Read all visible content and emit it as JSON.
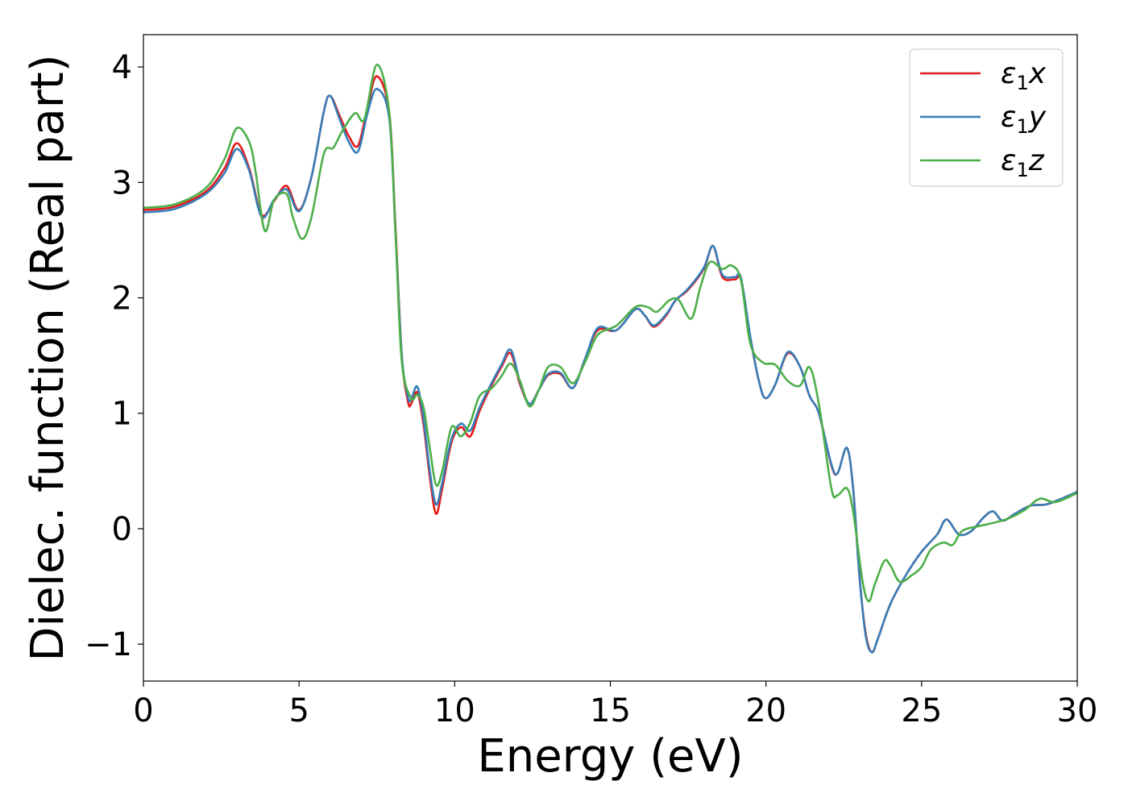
{
  "chart_data": {
    "type": "line",
    "title": "",
    "xlabel": "Energy (eV)",
    "ylabel": "Dielec. function (Real part)",
    "xlim": [
      0,
      30
    ],
    "ylim": [
      -1.32,
      4.28
    ],
    "xticks": [
      0,
      5,
      10,
      15,
      20,
      25,
      30
    ],
    "xtick_labels": [
      "0",
      "5",
      "10",
      "15",
      "20",
      "25",
      "30"
    ],
    "yticks": [
      -1,
      0,
      1,
      2,
      3,
      4
    ],
    "ytick_labels": [
      "−1",
      "0",
      "1",
      "2",
      "3",
      "4"
    ],
    "grid": false,
    "legend_position": "top-right",
    "series": [
      {
        "name": "ε1x",
        "legend_base": "ε",
        "legend_sub": "1",
        "legend_var": "x",
        "color": "#e41a1c",
        "points": [
          [
            0,
            2.76
          ],
          [
            1,
            2.79
          ],
          [
            2,
            2.92
          ],
          [
            2.6,
            3.12
          ],
          [
            3.0,
            3.34
          ],
          [
            3.4,
            3.12
          ],
          [
            3.8,
            2.72
          ],
          [
            4.2,
            2.84
          ],
          [
            4.6,
            2.97
          ],
          [
            5.0,
            2.76
          ],
          [
            5.4,
            3.05
          ],
          [
            5.8,
            3.62
          ],
          [
            6.0,
            3.75
          ],
          [
            6.3,
            3.58
          ],
          [
            6.6,
            3.4
          ],
          [
            6.9,
            3.32
          ],
          [
            7.2,
            3.65
          ],
          [
            7.5,
            3.92
          ],
          [
            7.9,
            3.6
          ],
          [
            8.1,
            2.6
          ],
          [
            8.3,
            1.5
          ],
          [
            8.5,
            1.1
          ],
          [
            8.6,
            1.08
          ],
          [
            8.8,
            1.18
          ],
          [
            9.0,
            0.9
          ],
          [
            9.2,
            0.45
          ],
          [
            9.4,
            0.13
          ],
          [
            9.6,
            0.35
          ],
          [
            9.9,
            0.75
          ],
          [
            10.2,
            0.88
          ],
          [
            10.5,
            0.8
          ],
          [
            10.8,
            1.02
          ],
          [
            11.2,
            1.25
          ],
          [
            11.5,
            1.4
          ],
          [
            11.8,
            1.52
          ],
          [
            12.1,
            1.25
          ],
          [
            12.4,
            1.08
          ],
          [
            12.7,
            1.2
          ],
          [
            13.0,
            1.33
          ],
          [
            13.4,
            1.34
          ],
          [
            13.8,
            1.22
          ],
          [
            14.2,
            1.48
          ],
          [
            14.6,
            1.72
          ],
          [
            15.2,
            1.72
          ],
          [
            15.8,
            1.9
          ],
          [
            16.1,
            1.85
          ],
          [
            16.4,
            1.75
          ],
          [
            16.8,
            1.85
          ],
          [
            17.1,
            1.98
          ],
          [
            17.5,
            2.07
          ],
          [
            18.0,
            2.25
          ],
          [
            18.3,
            2.45
          ],
          [
            18.6,
            2.18
          ],
          [
            19.0,
            2.16
          ],
          [
            19.2,
            2.15
          ],
          [
            19.5,
            1.65
          ],
          [
            19.8,
            1.25
          ],
          [
            20.0,
            1.13
          ],
          [
            20.3,
            1.25
          ],
          [
            20.7,
            1.52
          ],
          [
            21.1,
            1.4
          ],
          [
            21.4,
            1.15
          ],
          [
            21.7,
            1.0
          ],
          [
            22.1,
            0.55
          ],
          [
            22.3,
            0.48
          ],
          [
            22.6,
            0.7
          ],
          [
            22.8,
            0.35
          ],
          [
            23.0,
            -0.4
          ],
          [
            23.2,
            -0.9
          ],
          [
            23.4,
            -1.07
          ],
          [
            23.6,
            -0.95
          ],
          [
            24.0,
            -0.65
          ],
          [
            24.5,
            -0.4
          ],
          [
            25.0,
            -0.2
          ],
          [
            25.5,
            -0.05
          ],
          [
            25.8,
            0.08
          ],
          [
            26.2,
            -0.05
          ],
          [
            26.6,
            -0.02
          ],
          [
            27.0,
            0.1
          ],
          [
            27.3,
            0.15
          ],
          [
            27.6,
            0.07
          ],
          [
            28.0,
            0.13
          ],
          [
            28.5,
            0.2
          ],
          [
            29.0,
            0.21
          ],
          [
            29.5,
            0.26
          ],
          [
            30,
            0.32
          ]
        ]
      },
      {
        "name": "ε1y",
        "legend_base": "ε",
        "legend_sub": "1",
        "legend_var": "y",
        "color": "#377eb8",
        "points": [
          [
            0,
            2.74
          ],
          [
            1,
            2.77
          ],
          [
            2,
            2.9
          ],
          [
            2.6,
            3.08
          ],
          [
            3.0,
            3.29
          ],
          [
            3.4,
            3.1
          ],
          [
            3.8,
            2.7
          ],
          [
            4.2,
            2.85
          ],
          [
            4.6,
            2.94
          ],
          [
            5.0,
            2.75
          ],
          [
            5.4,
            3.05
          ],
          [
            5.8,
            3.62
          ],
          [
            6.0,
            3.75
          ],
          [
            6.3,
            3.55
          ],
          [
            6.6,
            3.35
          ],
          [
            6.9,
            3.27
          ],
          [
            7.2,
            3.6
          ],
          [
            7.5,
            3.81
          ],
          [
            7.9,
            3.55
          ],
          [
            8.1,
            2.55
          ],
          [
            8.3,
            1.5
          ],
          [
            8.5,
            1.14
          ],
          [
            8.6,
            1.12
          ],
          [
            8.8,
            1.23
          ],
          [
            9.0,
            0.95
          ],
          [
            9.2,
            0.5
          ],
          [
            9.4,
            0.21
          ],
          [
            9.6,
            0.4
          ],
          [
            9.9,
            0.78
          ],
          [
            10.2,
            0.91
          ],
          [
            10.5,
            0.85
          ],
          [
            10.8,
            1.05
          ],
          [
            11.2,
            1.27
          ],
          [
            11.5,
            1.42
          ],
          [
            11.8,
            1.55
          ],
          [
            12.1,
            1.27
          ],
          [
            12.4,
            1.08
          ],
          [
            12.7,
            1.2
          ],
          [
            13.0,
            1.34
          ],
          [
            13.4,
            1.35
          ],
          [
            13.8,
            1.22
          ],
          [
            14.2,
            1.48
          ],
          [
            14.6,
            1.74
          ],
          [
            15.2,
            1.72
          ],
          [
            15.8,
            1.9
          ],
          [
            16.1,
            1.85
          ],
          [
            16.4,
            1.76
          ],
          [
            16.8,
            1.86
          ],
          [
            17.1,
            1.98
          ],
          [
            17.5,
            2.08
          ],
          [
            18.0,
            2.26
          ],
          [
            18.3,
            2.45
          ],
          [
            18.6,
            2.2
          ],
          [
            19.0,
            2.18
          ],
          [
            19.2,
            2.17
          ],
          [
            19.5,
            1.66
          ],
          [
            19.8,
            1.25
          ],
          [
            20.0,
            1.13
          ],
          [
            20.3,
            1.25
          ],
          [
            20.7,
            1.53
          ],
          [
            21.1,
            1.4
          ],
          [
            21.4,
            1.15
          ],
          [
            21.7,
            1.0
          ],
          [
            22.1,
            0.56
          ],
          [
            22.3,
            0.48
          ],
          [
            22.6,
            0.7
          ],
          [
            22.8,
            0.35
          ],
          [
            23.0,
            -0.4
          ],
          [
            23.2,
            -0.92
          ],
          [
            23.4,
            -1.07
          ],
          [
            23.6,
            -0.95
          ],
          [
            24.0,
            -0.65
          ],
          [
            24.5,
            -0.4
          ],
          [
            25.0,
            -0.2
          ],
          [
            25.5,
            -0.05
          ],
          [
            25.8,
            0.08
          ],
          [
            26.2,
            -0.05
          ],
          [
            26.6,
            -0.02
          ],
          [
            27.0,
            0.1
          ],
          [
            27.3,
            0.15
          ],
          [
            27.6,
            0.07
          ],
          [
            28.0,
            0.13
          ],
          [
            28.5,
            0.2
          ],
          [
            29.0,
            0.21
          ],
          [
            29.5,
            0.26
          ],
          [
            30,
            0.32
          ]
        ]
      },
      {
        "name": "ε1z",
        "legend_base": "ε",
        "legend_sub": "1",
        "legend_var": "z",
        "color": "#4daf4a",
        "points": [
          [
            0,
            2.78
          ],
          [
            1,
            2.81
          ],
          [
            2,
            2.95
          ],
          [
            2.6,
            3.2
          ],
          [
            3.0,
            3.47
          ],
          [
            3.4,
            3.35
          ],
          [
            3.6,
            3.1
          ],
          [
            3.9,
            2.58
          ],
          [
            4.2,
            2.85
          ],
          [
            4.6,
            2.9
          ],
          [
            4.8,
            2.7
          ],
          [
            5.1,
            2.51
          ],
          [
            5.4,
            2.7
          ],
          [
            5.8,
            3.25
          ],
          [
            6.1,
            3.3
          ],
          [
            6.4,
            3.45
          ],
          [
            6.8,
            3.6
          ],
          [
            7.1,
            3.55
          ],
          [
            7.5,
            4.02
          ],
          [
            7.9,
            3.6
          ],
          [
            8.1,
            2.55
          ],
          [
            8.3,
            1.45
          ],
          [
            8.6,
            1.13
          ],
          [
            8.8,
            1.16
          ],
          [
            9.0,
            1.05
          ],
          [
            9.2,
            0.7
          ],
          [
            9.4,
            0.38
          ],
          [
            9.6,
            0.5
          ],
          [
            9.9,
            0.88
          ],
          [
            10.2,
            0.8
          ],
          [
            10.5,
            0.92
          ],
          [
            10.8,
            1.15
          ],
          [
            11.2,
            1.22
          ],
          [
            11.5,
            1.32
          ],
          [
            11.8,
            1.43
          ],
          [
            12.1,
            1.28
          ],
          [
            12.4,
            1.06
          ],
          [
            12.7,
            1.2
          ],
          [
            13.0,
            1.4
          ],
          [
            13.4,
            1.4
          ],
          [
            13.8,
            1.26
          ],
          [
            14.2,
            1.45
          ],
          [
            14.6,
            1.68
          ],
          [
            15.2,
            1.76
          ],
          [
            15.8,
            1.92
          ],
          [
            16.2,
            1.92
          ],
          [
            16.5,
            1.88
          ],
          [
            16.9,
            1.98
          ],
          [
            17.2,
            1.98
          ],
          [
            17.6,
            1.82
          ],
          [
            17.9,
            2.1
          ],
          [
            18.2,
            2.31
          ],
          [
            18.6,
            2.25
          ],
          [
            18.9,
            2.28
          ],
          [
            19.2,
            2.15
          ],
          [
            19.5,
            1.6
          ],
          [
            19.9,
            1.44
          ],
          [
            20.3,
            1.42
          ],
          [
            20.7,
            1.28
          ],
          [
            21.1,
            1.24
          ],
          [
            21.4,
            1.4
          ],
          [
            21.7,
            1.08
          ],
          [
            22.1,
            0.35
          ],
          [
            22.3,
            0.29
          ],
          [
            22.6,
            0.35
          ],
          [
            22.8,
            0.15
          ],
          [
            23.1,
            -0.45
          ],
          [
            23.3,
            -0.63
          ],
          [
            23.5,
            -0.48
          ],
          [
            23.8,
            -0.28
          ],
          [
            24.0,
            -0.32
          ],
          [
            24.3,
            -0.46
          ],
          [
            24.7,
            -0.4
          ],
          [
            25.0,
            -0.33
          ],
          [
            25.3,
            -0.18
          ],
          [
            25.7,
            -0.12
          ],
          [
            26.0,
            -0.14
          ],
          [
            26.3,
            -0.02
          ],
          [
            26.8,
            0.02
          ],
          [
            27.3,
            0.05
          ],
          [
            27.8,
            0.09
          ],
          [
            28.3,
            0.16
          ],
          [
            28.8,
            0.26
          ],
          [
            29.3,
            0.23
          ],
          [
            30,
            0.31
          ]
        ]
      }
    ]
  }
}
